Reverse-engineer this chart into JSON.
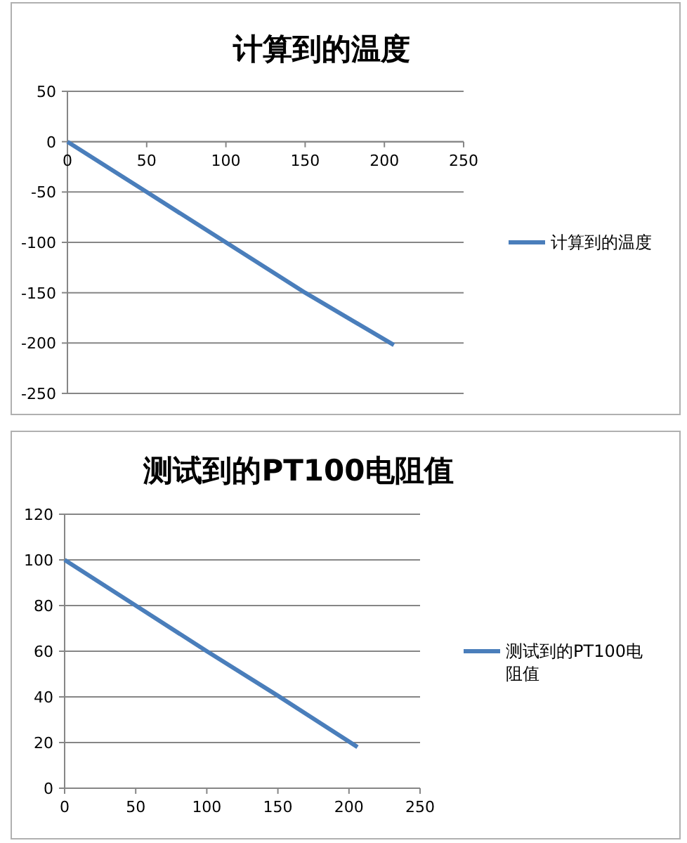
{
  "chart_data": [
    {
      "type": "line",
      "title": "计算到的温度",
      "x": [
        0,
        50,
        100,
        150,
        206
      ],
      "series": [
        {
          "name": "计算到的温度",
          "color": "#4a7ebb",
          "values": [
            0,
            -50,
            -100,
            -150,
            -202
          ]
        }
      ],
      "xlim": [
        0,
        250
      ],
      "xticks": [
        0,
        50,
        100,
        150,
        200,
        250
      ],
      "ylim": [
        -250,
        50
      ],
      "yticks": [
        -250,
        -200,
        -150,
        -100,
        -50,
        0,
        50
      ],
      "grid": "y",
      "legend": "right"
    },
    {
      "type": "line",
      "title": "测试到的PT100电阻值",
      "x": [
        0,
        50,
        100,
        150,
        206
      ],
      "series": [
        {
          "name": "测试到的PT100电阻值",
          "color": "#4a7ebb",
          "values": [
            100,
            80,
            60,
            40.5,
            18
          ]
        }
      ],
      "xlim": [
        0,
        250
      ],
      "xticks": [
        0,
        50,
        100,
        150,
        200,
        250
      ],
      "ylim": [
        0,
        120
      ],
      "yticks": [
        0,
        20,
        40,
        60,
        80,
        100,
        120
      ],
      "grid": "y",
      "legend": "right"
    }
  ]
}
